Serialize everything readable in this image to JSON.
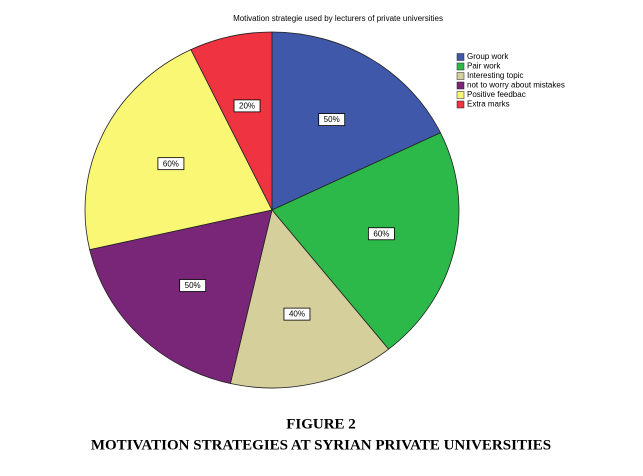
{
  "chart_data": {
    "type": "pie",
    "title": "Motivation strategie used by lecturers  of private universities",
    "categories": [
      "Group work",
      "Pair work",
      "Interesting topic",
      "not to worry about mistakes",
      "Positive feedbac",
      "Extra marks"
    ],
    "values": [
      50,
      60,
      40,
      50,
      60,
      20
    ],
    "value_labels": [
      "50%",
      "60%",
      "40%",
      "50%",
      "60%",
      "20%"
    ],
    "colors": [
      "#3f58aa",
      "#2db84a",
      "#d5cf9c",
      "#7a2678",
      "#f9f774",
      "#ef3340"
    ],
    "legend": "right",
    "figure_number": "FIGURE 2",
    "caption": "MOTIVATION STRATEGIES AT SYRIAN PRIVATE UNIVERSITIES"
  }
}
